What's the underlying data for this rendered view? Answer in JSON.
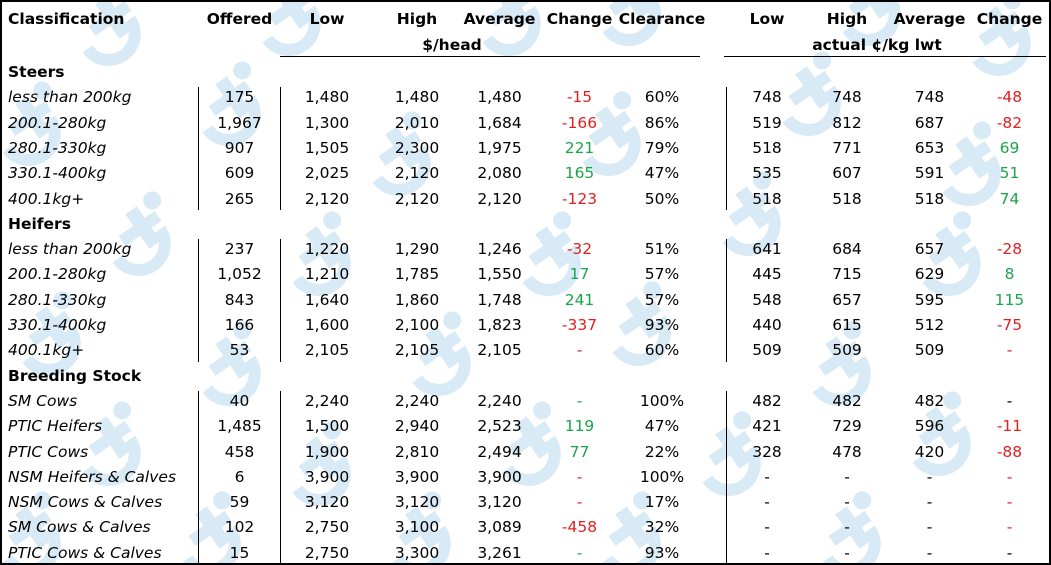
{
  "header": {
    "classification": "Classification",
    "offered": "Offered",
    "low": "Low",
    "high": "High",
    "average": "Average",
    "change": "Change",
    "clearance": "Clearance",
    "unit_head": "$/head",
    "low2": "Low",
    "high2": "High",
    "average2": "Average",
    "change2": "Change",
    "unit_kg": "actual ¢/kg lwt"
  },
  "sections": [
    {
      "title": "Steers",
      "rows": [
        {
          "label": "less than 200kg",
          "offered": "175",
          "low": "1,480",
          "high": "1,480",
          "avg": "1,480",
          "change": "-15",
          "change_color": "red",
          "clearance": "60%",
          "low2": "748",
          "high2": "748",
          "avg2": "748",
          "change2": "-48",
          "change2_color": "red"
        },
        {
          "label": "200.1-280kg",
          "offered": "1,967",
          "low": "1,300",
          "high": "2,010",
          "avg": "1,684",
          "change": "-166",
          "change_color": "red",
          "clearance": "86%",
          "low2": "519",
          "high2": "812",
          "avg2": "687",
          "change2": "-82",
          "change2_color": "red"
        },
        {
          "label": "280.1-330kg",
          "offered": "907",
          "low": "1,505",
          "high": "2,300",
          "avg": "1,975",
          "change": "221",
          "change_color": "green",
          "clearance": "79%",
          "low2": "518",
          "high2": "771",
          "avg2": "653",
          "change2": "69",
          "change2_color": "green"
        },
        {
          "label": "330.1-400kg",
          "offered": "609",
          "low": "2,025",
          "high": "2,120",
          "avg": "2,080",
          "change": "165",
          "change_color": "green",
          "clearance": "47%",
          "low2": "535",
          "high2": "607",
          "avg2": "591",
          "change2": "51",
          "change2_color": "green"
        },
        {
          "label": "400.1kg+",
          "offered": "265",
          "low": "2,120",
          "high": "2,120",
          "avg": "2,120",
          "change": "-123",
          "change_color": "red",
          "clearance": "50%",
          "low2": "518",
          "high2": "518",
          "avg2": "518",
          "change2": "74",
          "change2_color": "green"
        }
      ]
    },
    {
      "title": "Heifers",
      "rows": [
        {
          "label": "less than 200kg",
          "offered": "237",
          "low": "1,220",
          "high": "1,290",
          "avg": "1,246",
          "change": "-32",
          "change_color": "red",
          "clearance": "51%",
          "low2": "641",
          "high2": "684",
          "avg2": "657",
          "change2": "-28",
          "change2_color": "red"
        },
        {
          "label": "200.1-280kg",
          "offered": "1,052",
          "low": "1,210",
          "high": "1,785",
          "avg": "1,550",
          "change": "17",
          "change_color": "green",
          "clearance": "57%",
          "low2": "445",
          "high2": "715",
          "avg2": "629",
          "change2": "8",
          "change2_color": "green"
        },
        {
          "label": "280.1-330kg",
          "offered": "843",
          "low": "1,640",
          "high": "1,860",
          "avg": "1,748",
          "change": "241",
          "change_color": "green",
          "clearance": "57%",
          "low2": "548",
          "high2": "657",
          "avg2": "595",
          "change2": "115",
          "change2_color": "green"
        },
        {
          "label": "330.1-400kg",
          "offered": "166",
          "low": "1,600",
          "high": "2,100",
          "avg": "1,823",
          "change": "-337",
          "change_color": "red",
          "clearance": "93%",
          "low2": "440",
          "high2": "615",
          "avg2": "512",
          "change2": "-75",
          "change2_color": "red"
        },
        {
          "label": "400.1kg+",
          "offered": "53",
          "low": "2,105",
          "high": "2,105",
          "avg": "2,105",
          "change": "-",
          "change_color": "red",
          "clearance": "60%",
          "low2": "509",
          "high2": "509",
          "avg2": "509",
          "change2": "-",
          "change2_color": "red"
        }
      ]
    },
    {
      "title": "Breeding Stock",
      "rows": [
        {
          "label": "SM Cows",
          "offered": "40",
          "low": "2,240",
          "high": "2,240",
          "avg": "2,240",
          "change": "-",
          "change_color": "green",
          "clearance": "100%",
          "low2": "482",
          "high2": "482",
          "avg2": "482",
          "change2": "-",
          "change2_color": "black"
        },
        {
          "label": "PTIC Heifers",
          "offered": "1,485",
          "low": "1,500",
          "high": "2,940",
          "avg": "2,523",
          "change": "119",
          "change_color": "green",
          "clearance": "47%",
          "low2": "421",
          "high2": "729",
          "avg2": "596",
          "change2": "-11",
          "change2_color": "red"
        },
        {
          "label": "PTIC Cows",
          "offered": "458",
          "low": "1,900",
          "high": "2,810",
          "avg": "2,494",
          "change": "77",
          "change_color": "green",
          "clearance": "22%",
          "low2": "328",
          "high2": "478",
          "avg2": "420",
          "change2": "-88",
          "change2_color": "red"
        },
        {
          "label": "NSM Heifers & Calves",
          "offered": "6",
          "low": "3,900",
          "high": "3,900",
          "avg": "3,900",
          "change": "-",
          "change_color": "red",
          "clearance": "100%",
          "low2": "-",
          "high2": "-",
          "avg2": "-",
          "change2": "-",
          "change2_color": "red"
        },
        {
          "label": "NSM Cows & Calves",
          "offered": "59",
          "low": "3,120",
          "high": "3,120",
          "avg": "3,120",
          "change": "-",
          "change_color": "red",
          "clearance": "17%",
          "low2": "-",
          "high2": "-",
          "avg2": "-",
          "change2": "-",
          "change2_color": "red"
        },
        {
          "label": "SM Cows & Calves",
          "offered": "102",
          "low": "2,750",
          "high": "3,100",
          "avg": "3,089",
          "change": "-458",
          "change_color": "red",
          "clearance": "32%",
          "low2": "-",
          "high2": "-",
          "avg2": "-",
          "change2": "-",
          "change2_color": "red"
        },
        {
          "label": "PTIC Cows & Calves",
          "offered": "15",
          "low": "2,750",
          "high": "3,300",
          "avg": "3,261",
          "change": "-",
          "change_color": "green",
          "clearance": "93%",
          "low2": "-",
          "high2": "-",
          "avg2": "-",
          "change2": "-",
          "change2_color": "black"
        }
      ]
    }
  ]
}
